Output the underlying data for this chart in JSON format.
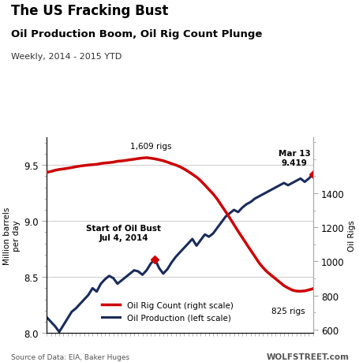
{
  "title": "The US Fracking Bust",
  "subtitle": "Oil Production Boom, Oil Rig Count Plunge",
  "subtitle2": "Weekly, 2014 - 2015 YTD",
  "ylabel_left": "Million barrels\nper day",
  "ylabel_right": "Oil Rigs",
  "source": "Source of Data: EIA, Baker Huges",
  "watermark": "WOLFSTREET.com",
  "left_ylim": [
    8.0,
    9.75
  ],
  "right_ylim": [
    580,
    1730
  ],
  "rig_color": "#cc0000",
  "prod_color": "#1a2c5b",
  "legend_rig": "Oil Rig Count (right scale)",
  "legend_prod": "Oil Production (left scale)",
  "oil_production": [
    8.14,
    8.1,
    8.06,
    8.01,
    8.07,
    8.13,
    8.19,
    8.22,
    8.26,
    8.3,
    8.34,
    8.4,
    8.37,
    8.44,
    8.48,
    8.51,
    8.49,
    8.44,
    8.47,
    8.5,
    8.53,
    8.56,
    8.55,
    8.52,
    8.56,
    8.62,
    8.66,
    8.58,
    8.53,
    8.57,
    8.63,
    8.68,
    8.72,
    8.76,
    8.8,
    8.84,
    8.78,
    8.83,
    8.88,
    8.86,
    8.89,
    8.94,
    8.99,
    9.04,
    9.07,
    9.1,
    9.08,
    9.12,
    9.15,
    9.17,
    9.2,
    9.22,
    9.24,
    9.26,
    9.28,
    9.3,
    9.32,
    9.34,
    9.32,
    9.34,
    9.36,
    9.38,
    9.35,
    9.38,
    9.419
  ],
  "rig_count": [
    1523,
    1528,
    1535,
    1540,
    1543,
    1547,
    1551,
    1556,
    1560,
    1563,
    1566,
    1568,
    1570,
    1575,
    1578,
    1580,
    1583,
    1588,
    1590,
    1593,
    1597,
    1600,
    1604,
    1607,
    1609,
    1606,
    1602,
    1597,
    1591,
    1583,
    1574,
    1566,
    1556,
    1543,
    1528,
    1512,
    1495,
    1474,
    1448,
    1422,
    1396,
    1365,
    1328,
    1292,
    1255,
    1216,
    1177,
    1140,
    1103,
    1066,
    1030,
    993,
    963,
    938,
    918,
    898,
    878,
    858,
    844,
    832,
    826,
    825,
    827,
    833,
    840
  ],
  "n_points": 65,
  "jul4_idx": 26,
  "peak_rig_idx": 24,
  "mar13_prod_idx": 64,
  "annotation1_text": "Start of Oil Bust\nJul 4, 2014",
  "annotation2_text": "Mar 13\n9.419",
  "annotation3_text": "1,609 rigs",
  "annotation4_text": "825 rigs"
}
